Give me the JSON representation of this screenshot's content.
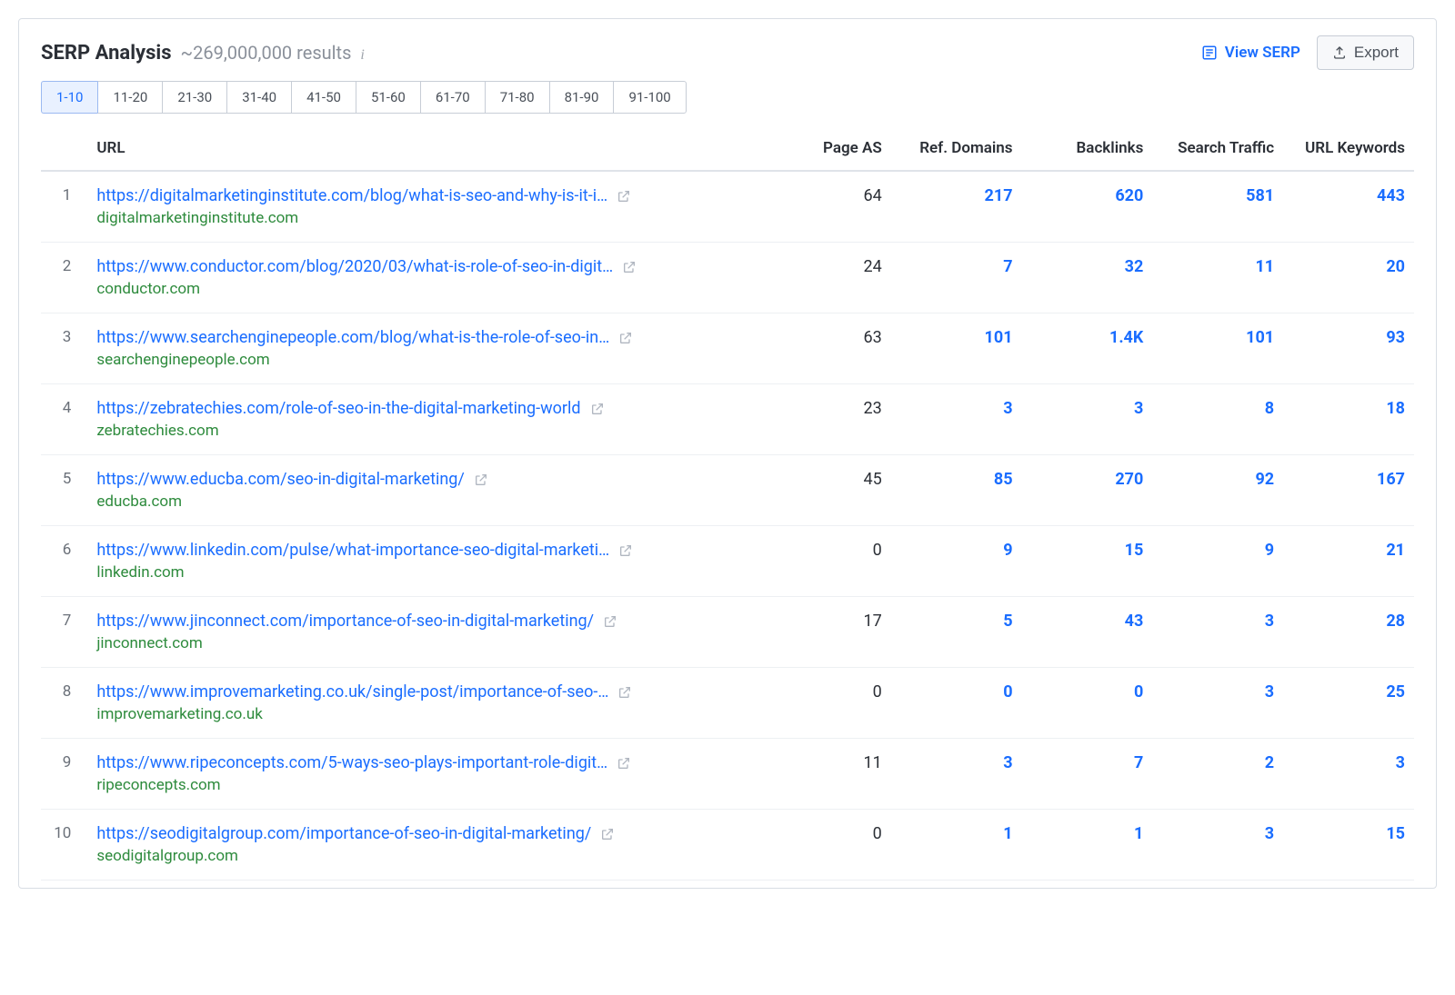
{
  "colors": {
    "link": "#1a6dff",
    "domain": "#2e8b3d",
    "text": "#2b2f36",
    "muted": "#8a909a",
    "border": "#d8dde4",
    "row_divider": "#edf0f3",
    "tab_active_bg": "#e9f1ff",
    "tab_active_border": "#9bb9f1",
    "export_bg": "#f7f8fa"
  },
  "header": {
    "title": "SERP Analysis",
    "subtitle": "~269,000,000 results",
    "info_tooltip": "i",
    "view_serp_label": "View SERP",
    "export_label": "Export"
  },
  "pager": {
    "active_index": 0,
    "tabs": [
      "1-10",
      "11-20",
      "21-30",
      "31-40",
      "41-50",
      "51-60",
      "61-70",
      "71-80",
      "81-90",
      "91-100"
    ]
  },
  "table": {
    "columns": {
      "rank": "",
      "url": "URL",
      "page_as": "Page AS",
      "ref_domains": "Ref. Domains",
      "backlinks": "Backlinks",
      "search_traffic": "Search Traffic",
      "url_keywords": "URL Keywords"
    },
    "rows": [
      {
        "rank": "1",
        "url": "https://digitalmarketinginstitute.com/blog/what-is-seo-and-why-is-it-i…",
        "domain": "digitalmarketinginstitute.com",
        "page_as": "64",
        "ref_domains": "217",
        "backlinks": "620",
        "search_traffic": "581",
        "url_keywords": "443"
      },
      {
        "rank": "2",
        "url": "https://www.conductor.com/blog/2020/03/what-is-role-of-seo-in-digit…",
        "domain": "conductor.com",
        "page_as": "24",
        "ref_domains": "7",
        "backlinks": "32",
        "search_traffic": "11",
        "url_keywords": "20"
      },
      {
        "rank": "3",
        "url": "https://www.searchenginepeople.com/blog/what-is-the-role-of-seo-in…",
        "domain": "searchenginepeople.com",
        "page_as": "63",
        "ref_domains": "101",
        "backlinks": "1.4K",
        "search_traffic": "101",
        "url_keywords": "93"
      },
      {
        "rank": "4",
        "url": "https://zebratechies.com/role-of-seo-in-the-digital-marketing-world",
        "domain": "zebratechies.com",
        "page_as": "23",
        "ref_domains": "3",
        "backlinks": "3",
        "search_traffic": "8",
        "url_keywords": "18"
      },
      {
        "rank": "5",
        "url": "https://www.educba.com/seo-in-digital-marketing/",
        "domain": "educba.com",
        "page_as": "45",
        "ref_domains": "85",
        "backlinks": "270",
        "search_traffic": "92",
        "url_keywords": "167"
      },
      {
        "rank": "6",
        "url": "https://www.linkedin.com/pulse/what-importance-seo-digital-marketi…",
        "domain": "linkedin.com",
        "page_as": "0",
        "ref_domains": "9",
        "backlinks": "15",
        "search_traffic": "9",
        "url_keywords": "21"
      },
      {
        "rank": "7",
        "url": "https://www.jinconnect.com/importance-of-seo-in-digital-marketing/",
        "domain": "jinconnect.com",
        "page_as": "17",
        "ref_domains": "5",
        "backlinks": "43",
        "search_traffic": "3",
        "url_keywords": "28"
      },
      {
        "rank": "8",
        "url": "https://www.improvemarketing.co.uk/single-post/importance-of-seo-…",
        "domain": "improvemarketing.co.uk",
        "page_as": "0",
        "ref_domains": "0",
        "backlinks": "0",
        "search_traffic": "3",
        "url_keywords": "25"
      },
      {
        "rank": "9",
        "url": "https://www.ripeconcepts.com/5-ways-seo-plays-important-role-digit…",
        "domain": "ripeconcepts.com",
        "page_as": "11",
        "ref_domains": "3",
        "backlinks": "7",
        "search_traffic": "2",
        "url_keywords": "3"
      },
      {
        "rank": "10",
        "url": "https://seodigitalgroup.com/importance-of-seo-in-digital-marketing/",
        "domain": "seodigitalgroup.com",
        "page_as": "0",
        "ref_domains": "1",
        "backlinks": "1",
        "search_traffic": "3",
        "url_keywords": "15"
      }
    ]
  }
}
